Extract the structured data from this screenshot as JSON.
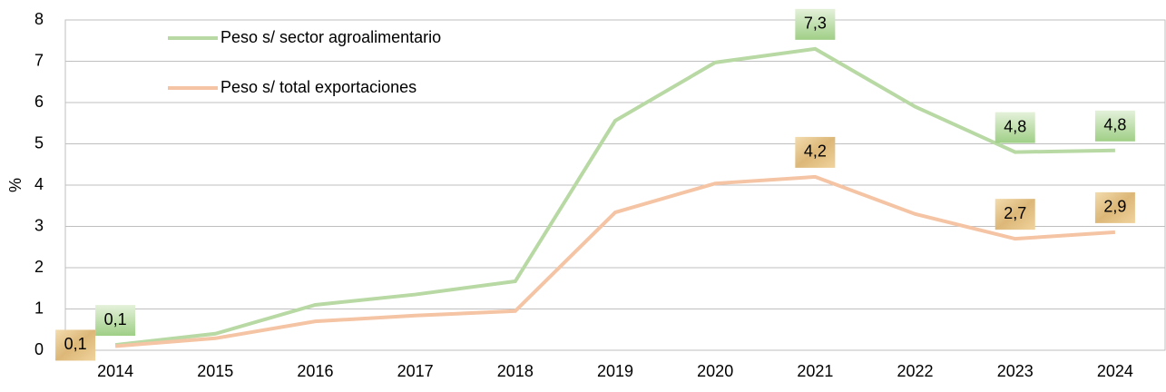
{
  "chart_data": {
    "type": "line",
    "y_label": "%",
    "categories": [
      "2014",
      "2015",
      "2016",
      "2017",
      "2018",
      "2019",
      "2020",
      "2021",
      "2022",
      "2023",
      "2024"
    ],
    "series": [
      {
        "name": "Peso s/ sector agroalimentario",
        "color": "#b8d9a4",
        "values": [
          0.13,
          0.4,
          1.1,
          1.35,
          1.67,
          5.56,
          6.97,
          7.3,
          5.9,
          4.8,
          4.84
        ],
        "value_labels": [
          "0,1",
          null,
          null,
          null,
          null,
          null,
          null,
          "7,3",
          null,
          "4,8",
          "4,8"
        ]
      },
      {
        "name": "Peso s/ total exportaciones",
        "color": "#f4c4a4",
        "values": [
          0.1,
          0.29,
          0.7,
          0.84,
          0.95,
          3.34,
          4.04,
          4.2,
          3.3,
          2.7,
          2.86
        ],
        "value_labels": [
          "0,1",
          null,
          null,
          null,
          null,
          null,
          null,
          "4,2",
          null,
          "2,7",
          "2,9"
        ]
      }
    ],
    "ylim": [
      0,
      8
    ],
    "yticks": [
      0,
      1,
      2,
      3,
      4,
      5,
      6,
      7,
      8
    ],
    "grid": true
  }
}
